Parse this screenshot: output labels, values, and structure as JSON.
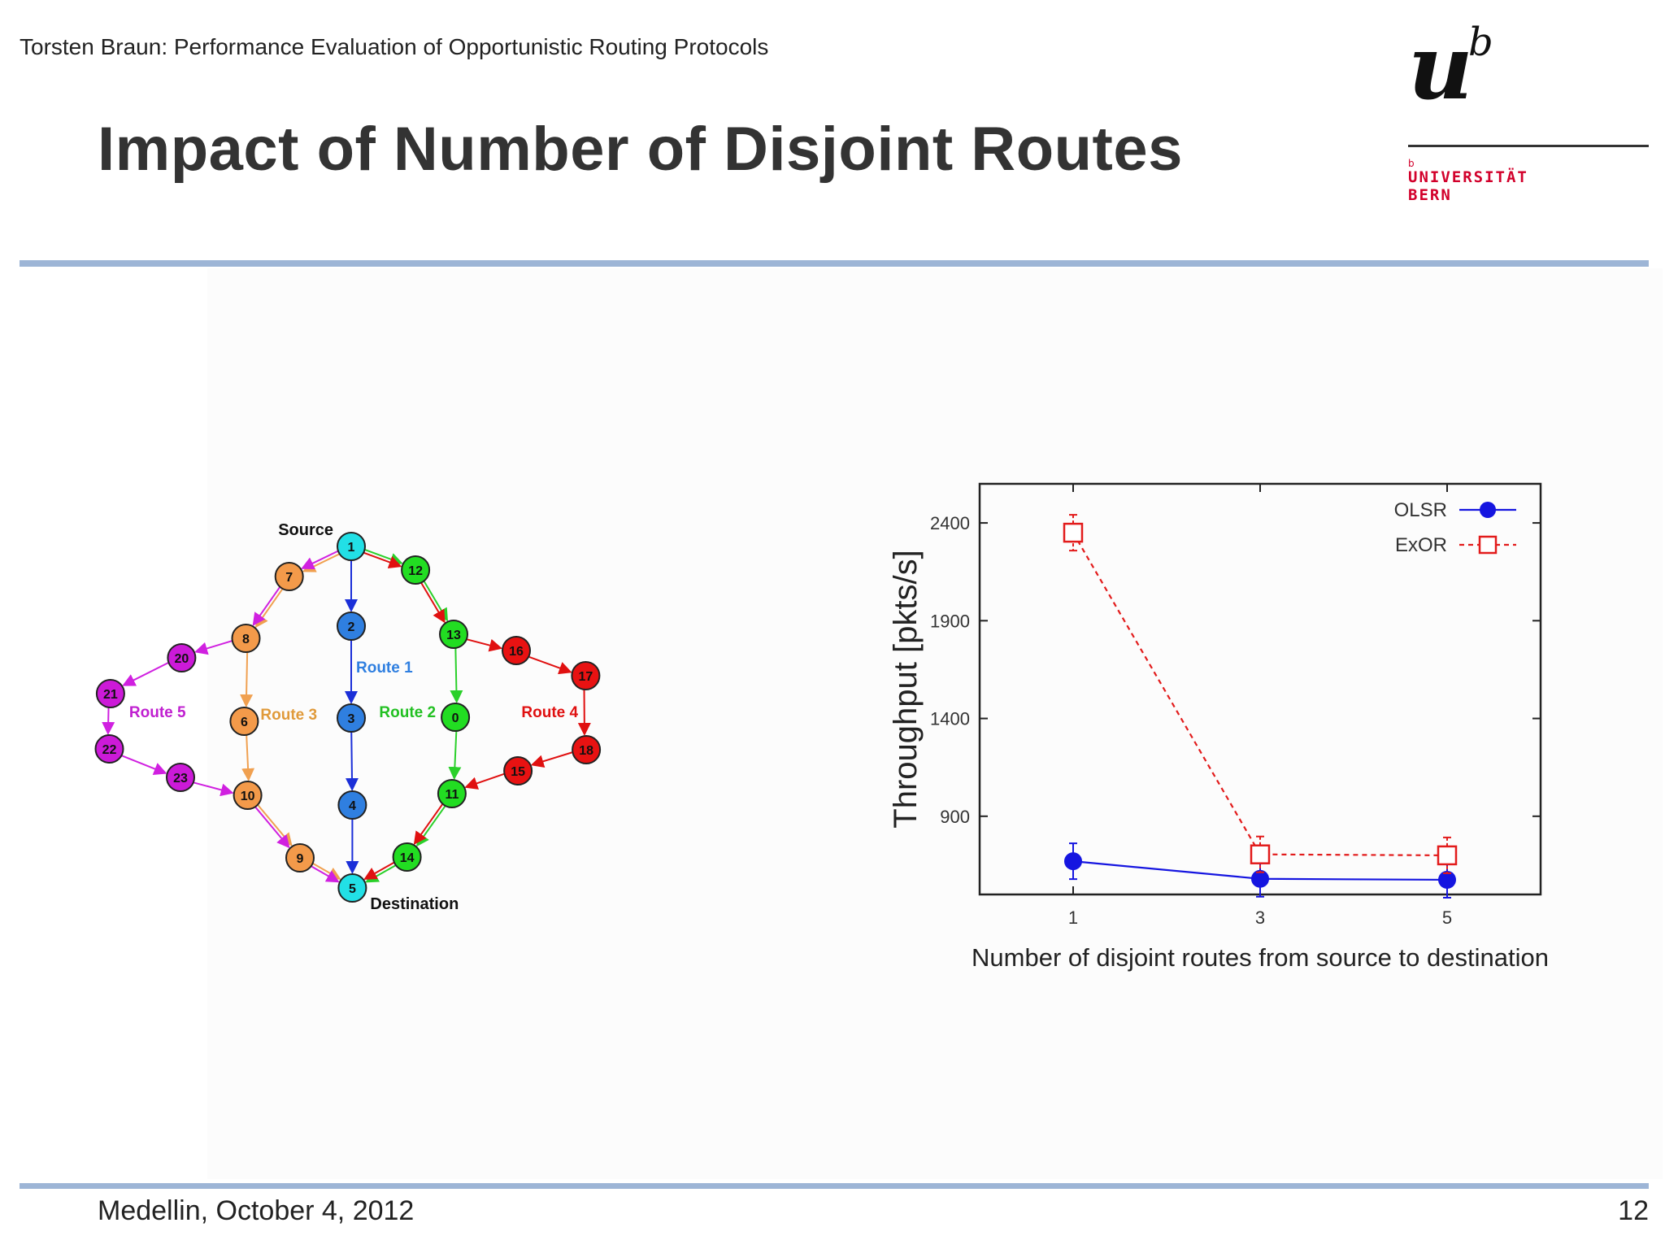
{
  "header": {
    "text": "Torsten Braun: Performance Evaluation of Opportunistic Routing Protocols"
  },
  "title": "Impact of Number of Disjoint Routes",
  "logo": {
    "letters": "u",
    "superscript": "b",
    "small_b": "b",
    "line1": "UNIVERSITÄT",
    "line2": "BERN"
  },
  "footer": {
    "left": "Medellin, October 4, 2012",
    "page": "12"
  },
  "colors": {
    "accent_rule": "#9db5d6",
    "logo_red": "#d2002b",
    "olsr": "#1515e0",
    "exor": "#e21b1b"
  },
  "network": {
    "source_label": "Source",
    "destination_label": "Destination",
    "route_labels": [
      {
        "text": "Route 1",
        "color": "#2f7fe0"
      },
      {
        "text": "Route 2",
        "color": "#22c022"
      },
      {
        "text": "Route 3",
        "color": "#e09a3a"
      },
      {
        "text": "Route 4",
        "color": "#e01010"
      },
      {
        "text": "Route 5",
        "color": "#c020d0"
      }
    ],
    "nodes": [
      "1",
      "7",
      "12",
      "2",
      "13",
      "8",
      "20",
      "16",
      "17",
      "21",
      "6",
      "3",
      "0",
      "22",
      "18",
      "23",
      "15",
      "10",
      "11",
      "4",
      "9",
      "14",
      "5"
    ]
  },
  "chart_data": {
    "type": "line",
    "x": [
      1,
      3,
      5
    ],
    "xlabel": "Number of disjoint routes from source to destination",
    "ylabel": "Throughput [pkts/s]",
    "yticks": [
      900,
      1400,
      1900,
      2400
    ],
    "xticks": [
      1,
      3,
      5
    ],
    "ylim": [
      500,
      2600
    ],
    "xlim": [
      0,
      6
    ],
    "legend": "top-right",
    "series": [
      {
        "name": "OLSR",
        "values": [
          670,
          580,
          575
        ],
        "color": "#1515e0",
        "style": "solid",
        "marker": "circle"
      },
      {
        "name": "ExOR",
        "values": [
          2350,
          705,
          700
        ],
        "color": "#e21b1b",
        "style": "dashed",
        "marker": "square"
      }
    ]
  }
}
